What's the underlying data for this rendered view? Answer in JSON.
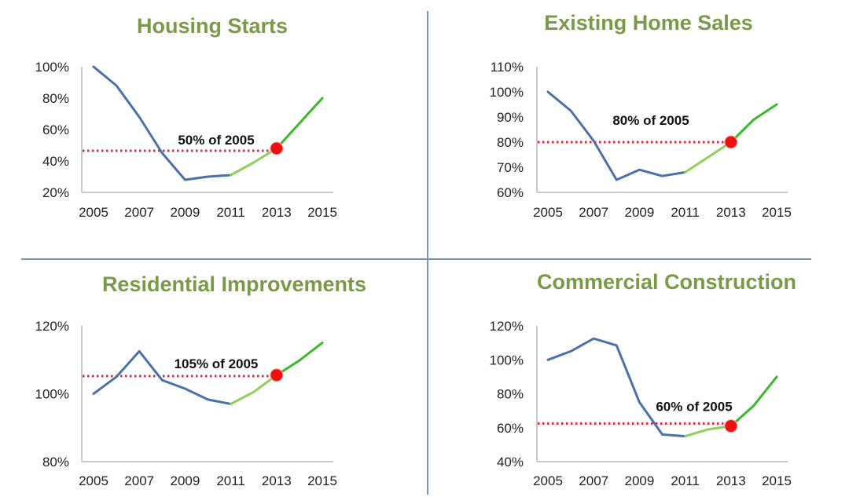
{
  "colors": {
    "title": "#7a9a47",
    "historical_line": "#4a72a8",
    "recovery_light": "#8fcf5c",
    "forecast_line": "#3cb82c",
    "reference_line": "#e0102a",
    "marker": "#ee1111",
    "divider": "#7e93b3",
    "axis": "#b8b8b8"
  },
  "chart_data": [
    {
      "type": "line",
      "title": "Housing Starts",
      "xlabel": "",
      "ylabel": "",
      "x": [
        2005,
        2006,
        2007,
        2008,
        2009,
        2010,
        2011,
        2012,
        2013,
        2014,
        2015
      ],
      "x_ticks": [
        "2005",
        "2007",
        "2009",
        "2011",
        "2013",
        "2015"
      ],
      "y_ticks": [
        "100%",
        "80%",
        "60%",
        "40%",
        "20%"
      ],
      "ylim": [
        20,
        100
      ],
      "series": [
        {
          "name": "historical",
          "x": [
            2005,
            2006,
            2007,
            2008,
            2009,
            2010,
            2011
          ],
          "values": [
            100,
            88,
            68,
            45,
            28,
            30,
            31
          ]
        },
        {
          "name": "recovery",
          "x": [
            2011,
            2012,
            2013
          ],
          "values": [
            31,
            39,
            48
          ]
        },
        {
          "name": "forecast",
          "x": [
            2013,
            2014,
            2015
          ],
          "values": [
            48,
            64,
            80
          ]
        }
      ],
      "reference": {
        "value": 46.5,
        "from": 2005,
        "to": 2013
      },
      "marker": {
        "x": 2013,
        "value": 48
      },
      "annotation": "50% of 2005",
      "grid": false
    },
    {
      "type": "line",
      "title": "Existing Home Sales",
      "xlabel": "",
      "ylabel": "",
      "x": [
        2005,
        2006,
        2007,
        2008,
        2009,
        2010,
        2011,
        2012,
        2013,
        2014,
        2015
      ],
      "x_ticks": [
        "2005",
        "2007",
        "2009",
        "2011",
        "2013",
        "2015"
      ],
      "y_ticks": [
        "110%",
        "100%",
        "90%",
        "80%",
        "70%",
        "60%"
      ],
      "ylim": [
        60,
        110
      ],
      "series": [
        {
          "name": "historical",
          "x": [
            2005,
            2006,
            2007,
            2008,
            2009,
            2010,
            2011
          ],
          "values": [
            100,
            92.5,
            80.5,
            65,
            69,
            66.5,
            68
          ]
        },
        {
          "name": "recovery",
          "x": [
            2011,
            2012,
            2013
          ],
          "values": [
            68,
            74,
            80
          ]
        },
        {
          "name": "forecast",
          "x": [
            2013,
            2014,
            2015
          ],
          "values": [
            80,
            89,
            95
          ]
        }
      ],
      "reference": {
        "value": 80,
        "from": 2005,
        "to": 2013
      },
      "marker": {
        "x": 2013,
        "value": 80
      },
      "annotation": "80% of 2005",
      "grid": false
    },
    {
      "type": "line",
      "title": "Residential Improvements",
      "xlabel": "",
      "ylabel": "",
      "x": [
        2005,
        2006,
        2007,
        2008,
        2009,
        2010,
        2011,
        2012,
        2013,
        2014,
        2015
      ],
      "x_ticks": [
        "2005",
        "2007",
        "2009",
        "2011",
        "2013",
        "2015"
      ],
      "y_ticks": [
        "120%",
        "100%",
        "80%"
      ],
      "ylim": [
        80,
        120
      ],
      "series": [
        {
          "name": "historical",
          "x": [
            2005,
            2006,
            2007,
            2008,
            2009,
            2010,
            2011
          ],
          "values": [
            100,
            105,
            112.5,
            104,
            101.5,
            98.3,
            97
          ]
        },
        {
          "name": "recovery",
          "x": [
            2011,
            2012,
            2013
          ],
          "values": [
            97,
            100.5,
            105.5
          ]
        },
        {
          "name": "forecast",
          "x": [
            2013,
            2014,
            2015
          ],
          "values": [
            105.5,
            109.8,
            115
          ]
        }
      ],
      "reference": {
        "value": 105.2,
        "from": 2005,
        "to": 2013
      },
      "marker": {
        "x": 2013,
        "value": 105.5
      },
      "annotation": "105% of 2005",
      "grid": false
    },
    {
      "type": "line",
      "title": "Commercial Construction",
      "xlabel": "",
      "ylabel": "",
      "x": [
        2005,
        2006,
        2007,
        2008,
        2009,
        2010,
        2011,
        2012,
        2013,
        2014,
        2015
      ],
      "x_ticks": [
        "2005",
        "2007",
        "2009",
        "2011",
        "2013",
        "2015"
      ],
      "y_ticks": [
        "120%",
        "100%",
        "80%",
        "60%",
        "40%"
      ],
      "ylim": [
        40,
        120
      ],
      "series": [
        {
          "name": "historical",
          "x": [
            2005,
            2006,
            2007,
            2008,
            2009,
            2010,
            2011
          ],
          "values": [
            100,
            105,
            112.5,
            108.5,
            75,
            56,
            55
          ]
        },
        {
          "name": "recovery",
          "x": [
            2011,
            2012,
            2013
          ],
          "values": [
            55,
            59,
            61
          ]
        },
        {
          "name": "forecast",
          "x": [
            2013,
            2014,
            2015
          ],
          "values": [
            61,
            73,
            90
          ]
        }
      ],
      "reference": {
        "value": 62.5,
        "from": 2005,
        "to": 2013
      },
      "marker": {
        "x": 2013,
        "value": 61
      },
      "annotation": "60% of 2005",
      "grid": false
    }
  ]
}
